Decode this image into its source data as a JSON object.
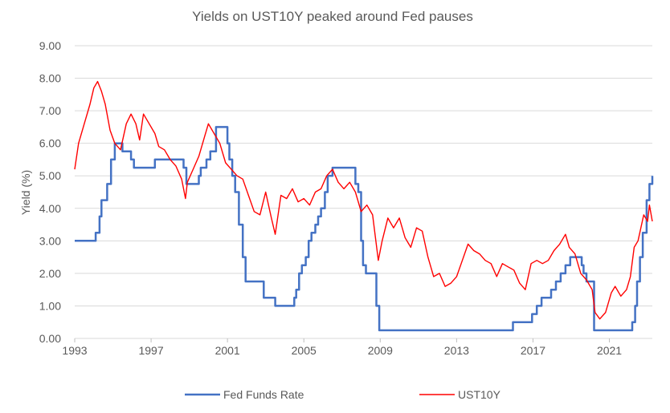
{
  "chart_data": {
    "type": "line",
    "title": "Yields on UST10Y peaked around Fed pauses",
    "xlabel": "",
    "ylabel": "Yield (%)",
    "xlim": [
      1993,
      2023.25
    ],
    "ylim": [
      0,
      9
    ],
    "x_ticks": [
      1993,
      1997,
      2001,
      2005,
      2009,
      2013,
      2017,
      2021
    ],
    "y_ticks": [
      "0.00",
      "1.00",
      "2.00",
      "3.00",
      "4.00",
      "5.00",
      "6.00",
      "7.00",
      "8.00",
      "9.00"
    ],
    "grid": "horizontal",
    "legend_position": "bottom",
    "series": [
      {
        "name": "Fed Funds Rate",
        "color": "#4472c4",
        "style": "step",
        "x": [
          1993.0,
          1994.1,
          1994.3,
          1994.4,
          1994.7,
          1994.9,
          1995.1,
          1995.5,
          1995.95,
          1996.1,
          1997.2,
          1998.7,
          1998.85,
          1999.5,
          1999.6,
          1999.9,
          2000.1,
          2000.4,
          2001.0,
          2001.1,
          2001.25,
          2001.4,
          2001.6,
          2001.8,
          2001.95,
          2002.9,
          2003.5,
          2004.5,
          2004.6,
          2004.75,
          2004.9,
          2005.1,
          2005.25,
          2005.4,
          2005.6,
          2005.75,
          2005.9,
          2006.1,
          2006.25,
          2006.5,
          2007.7,
          2007.85,
          2008.0,
          2008.1,
          2008.25,
          2008.8,
          2008.95,
          2015.95,
          2016.95,
          2017.2,
          2017.45,
          2017.95,
          2018.2,
          2018.45,
          2018.7,
          2018.95,
          2019.55,
          2019.65,
          2019.8,
          2020.2,
          2022.2,
          2022.35,
          2022.45,
          2022.6,
          2022.75,
          2022.95,
          2023.1,
          2023.25
        ],
        "values": [
          3.0,
          3.25,
          3.75,
          4.25,
          4.75,
          5.5,
          6.0,
          5.75,
          5.5,
          5.25,
          5.5,
          5.25,
          4.75,
          5.0,
          5.25,
          5.5,
          5.75,
          6.5,
          6.0,
          5.5,
          5.0,
          4.5,
          3.5,
          2.5,
          1.75,
          1.25,
          1.0,
          1.25,
          1.5,
          2.0,
          2.25,
          2.5,
          3.0,
          3.25,
          3.5,
          3.75,
          4.0,
          4.5,
          5.0,
          5.25,
          4.75,
          4.5,
          3.0,
          2.25,
          2.0,
          1.0,
          0.25,
          0.5,
          0.75,
          1.0,
          1.25,
          1.5,
          1.75,
          2.0,
          2.25,
          2.5,
          2.25,
          2.0,
          1.75,
          0.25,
          0.5,
          1.0,
          1.75,
          2.5,
          3.25,
          4.25,
          4.75,
          5.0
        ]
      },
      {
        "name": "UST10Y",
        "color": "#ff0000",
        "style": "line",
        "x": [
          1993.0,
          1993.2,
          1993.5,
          1993.8,
          1994.0,
          1994.2,
          1994.4,
          1994.6,
          1994.85,
          1995.1,
          1995.4,
          1995.7,
          1995.95,
          1996.2,
          1996.4,
          1996.6,
          1996.9,
          1997.2,
          1997.4,
          1997.7,
          1998.0,
          1998.3,
          1998.6,
          1998.8,
          1998.9,
          1999.2,
          1999.5,
          1999.8,
          2000.0,
          2000.3,
          2000.6,
          2000.9,
          2001.2,
          2001.5,
          2001.8,
          2002.1,
          2002.4,
          2002.7,
          2003.0,
          2003.3,
          2003.5,
          2003.8,
          2004.1,
          2004.4,
          2004.7,
          2005.0,
          2005.3,
          2005.6,
          2005.9,
          2006.2,
          2006.5,
          2006.8,
          2007.1,
          2007.4,
          2007.7,
          2008.0,
          2008.3,
          2008.6,
          2008.9,
          2009.1,
          2009.4,
          2009.7,
          2010.0,
          2010.3,
          2010.6,
          2010.9,
          2011.2,
          2011.5,
          2011.8,
          2012.1,
          2012.4,
          2012.7,
          2013.0,
          2013.3,
          2013.6,
          2013.9,
          2014.2,
          2014.5,
          2014.8,
          2015.1,
          2015.4,
          2015.7,
          2016.0,
          2016.3,
          2016.6,
          2016.9,
          2017.2,
          2017.5,
          2017.8,
          2018.1,
          2018.4,
          2018.7,
          2018.9,
          2019.2,
          2019.5,
          2019.8,
          2020.1,
          2020.25,
          2020.5,
          2020.8,
          2021.1,
          2021.3,
          2021.6,
          2021.9,
          2022.1,
          2022.3,
          2022.5,
          2022.8,
          2023.0,
          2023.1,
          2023.25
        ],
        "values": [
          5.2,
          6.0,
          6.6,
          7.2,
          7.7,
          7.9,
          7.6,
          7.2,
          6.4,
          6.0,
          5.8,
          6.6,
          6.9,
          6.6,
          6.1,
          6.9,
          6.6,
          6.3,
          5.9,
          5.8,
          5.5,
          5.3,
          4.9,
          4.3,
          4.8,
          5.2,
          5.6,
          6.2,
          6.6,
          6.3,
          6.0,
          5.4,
          5.2,
          5.0,
          4.9,
          4.4,
          3.9,
          3.8,
          4.5,
          3.7,
          3.2,
          4.4,
          4.3,
          4.6,
          4.2,
          4.3,
          4.1,
          4.5,
          4.6,
          5.0,
          5.2,
          4.8,
          4.6,
          4.8,
          4.5,
          3.9,
          4.1,
          3.8,
          2.4,
          3.0,
          3.7,
          3.4,
          3.7,
          3.1,
          2.8,
          3.4,
          3.3,
          2.5,
          1.9,
          2.0,
          1.6,
          1.7,
          1.9,
          2.4,
          2.9,
          2.7,
          2.6,
          2.4,
          2.3,
          1.9,
          2.3,
          2.2,
          2.1,
          1.7,
          1.5,
          2.3,
          2.4,
          2.3,
          2.4,
          2.7,
          2.9,
          3.2,
          2.8,
          2.6,
          2.0,
          1.8,
          1.5,
          0.8,
          0.6,
          0.8,
          1.4,
          1.6,
          1.3,
          1.5,
          1.9,
          2.8,
          3.0,
          3.8,
          3.6,
          4.1,
          3.6
        ]
      }
    ]
  }
}
